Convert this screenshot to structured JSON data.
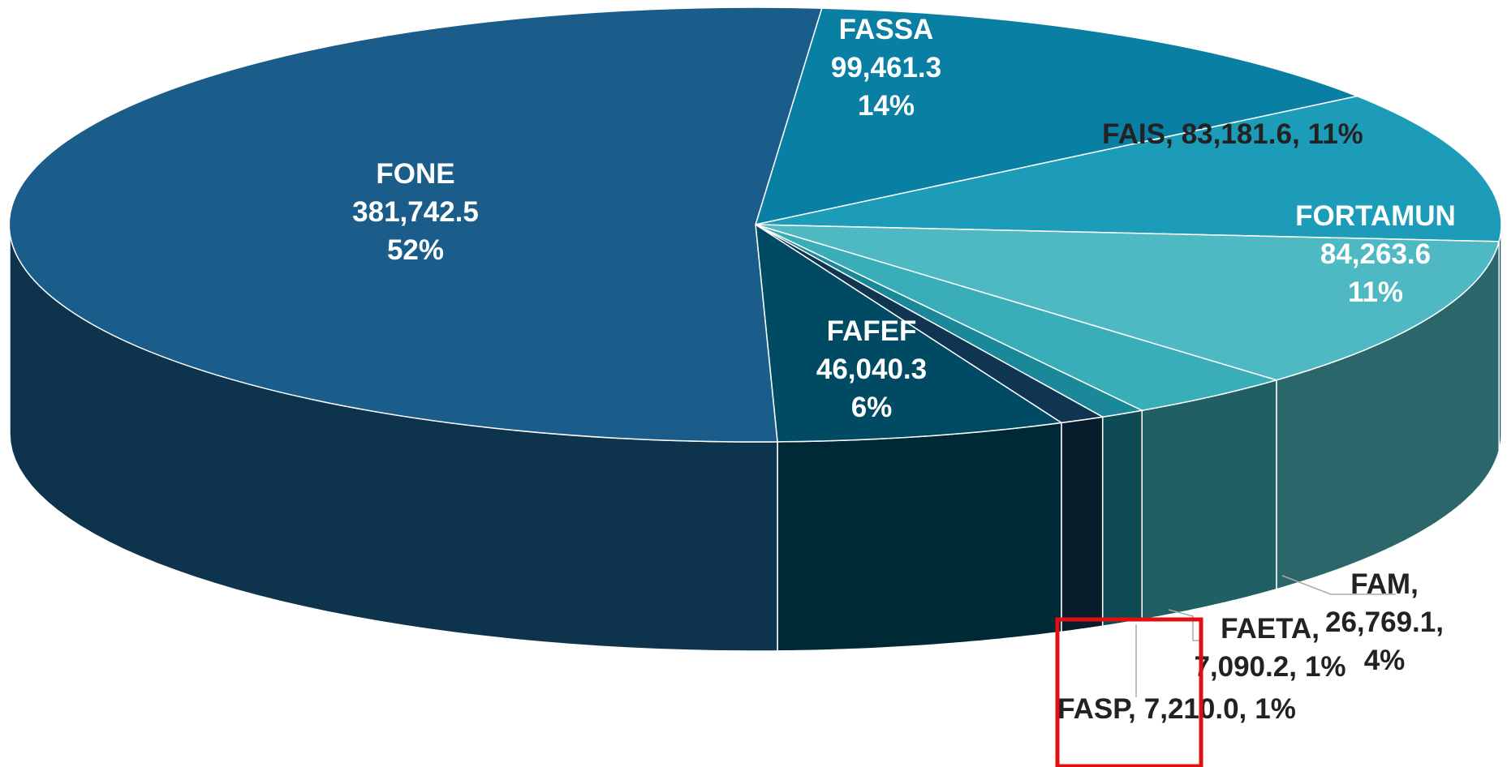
{
  "chart_data": {
    "type": "pie3d",
    "categories": [
      "FASSA",
      "FAIS",
      "FORTAMUN",
      "FAM",
      "FAETA",
      "FASP",
      "FAFEF",
      "FONE"
    ],
    "values": [
      99461.3,
      83181.6,
      84263.6,
      26769.1,
      7090.2,
      7210.0,
      46040.3,
      381742.5
    ],
    "value_labels": [
      "99,461.3",
      "83,181.6",
      "84,263.6",
      "26,769.1",
      "7,090.2",
      "7,210.0",
      "46,040.3",
      "381,742.5"
    ],
    "percents": [
      14,
      11,
      11,
      4,
      1,
      1,
      6,
      52
    ],
    "percent_labels": [
      "14%",
      "11%",
      "11%",
      "4%",
      "1%",
      "1%",
      "6%",
      "52%"
    ],
    "label_separator": ",",
    "colors": [
      "#0a7fa4",
      "#1c9cb8",
      "#4fb9c3",
      "#3aaeb8",
      "#1a8898",
      "#0f3550",
      "#004a63",
      "#1a5c8a"
    ]
  }
}
